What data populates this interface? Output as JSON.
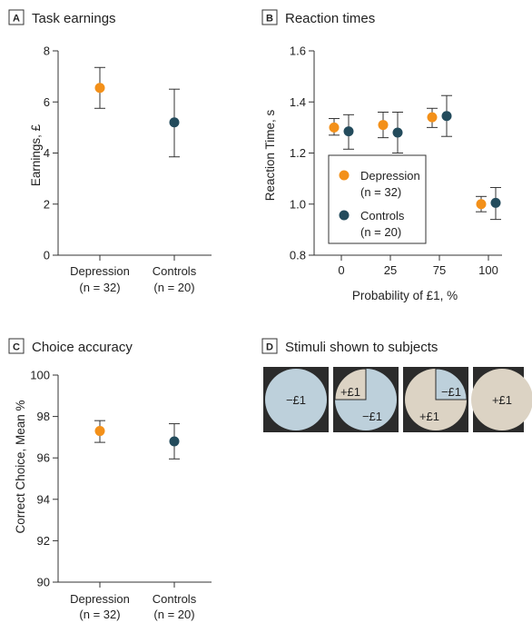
{
  "colors": {
    "depression": "#F39019",
    "controls": "#234B5C",
    "axis": "#333333",
    "stim_blue": "#BDD0DB",
    "stim_beige": "#DCD3C4",
    "stim_bg": "#2B2B2B"
  },
  "chart_data": [
    {
      "id": "A",
      "type": "scatter",
      "title": "Task earnings",
      "ylabel": "Earnings, £",
      "ylim": [
        0,
        8
      ],
      "yticks": [
        "0",
        "2",
        "4",
        "6",
        "8"
      ],
      "categories": [
        {
          "name": "Depression",
          "n": "(n = 32)"
        },
        {
          "name": "Controls",
          "n": "(n = 20)"
        }
      ],
      "points": [
        {
          "group": "depression",
          "mean": 6.55,
          "low": 5.75,
          "high": 7.35
        },
        {
          "group": "controls",
          "mean": 5.2,
          "low": 3.85,
          "high": 6.5
        }
      ]
    },
    {
      "id": "B",
      "type": "scatter",
      "title": "Reaction times",
      "ylabel": "Reaction Time, s",
      "xlabel": "Probability of £1, %",
      "ylim": [
        0.8,
        1.6
      ],
      "yticks": [
        "0.8",
        "1.0",
        "1.2",
        "1.4",
        "1.6"
      ],
      "categories": [
        "0",
        "25",
        "75",
        "100"
      ],
      "series": [
        {
          "name": "Depression",
          "n": "(n = 32)",
          "key": "depression",
          "means": [
            1.3,
            1.31,
            1.34,
            1.0
          ],
          "lows": [
            1.27,
            1.26,
            1.3,
            0.97
          ],
          "highs": [
            1.335,
            1.36,
            1.375,
            1.03
          ]
        },
        {
          "name": "Controls",
          "n": "(n = 20)",
          "key": "controls",
          "means": [
            1.285,
            1.28,
            1.345,
            1.005
          ],
          "lows": [
            1.215,
            1.2,
            1.265,
            0.94
          ],
          "highs": [
            1.35,
            1.36,
            1.425,
            1.065
          ]
        }
      ],
      "legend_position": "lower-left"
    },
    {
      "id": "C",
      "type": "scatter",
      "title": "Choice accuracy",
      "ylabel": "Correct Choice, Mean %",
      "ylim": [
        90,
        100
      ],
      "yticks": [
        "90",
        "92",
        "94",
        "96",
        "98",
        "100"
      ],
      "categories": [
        {
          "name": "Depression",
          "n": "(n = 32)"
        },
        {
          "name": "Controls",
          "n": "(n = 20)"
        }
      ],
      "points": [
        {
          "group": "depression",
          "mean": 97.3,
          "low": 96.75,
          "high": 97.8
        },
        {
          "group": "controls",
          "mean": 96.8,
          "low": 95.95,
          "high": 97.65
        }
      ]
    }
  ],
  "panel_d": {
    "letter": "D",
    "title": "Stimuli shown to subjects",
    "stimuli": [
      {
        "fraction_win": 0,
        "labels": [
          "−£1"
        ]
      },
      {
        "fraction_win": 0.25,
        "labels": [
          "+£1",
          "−£1"
        ]
      },
      {
        "fraction_win": 0.75,
        "labels": [
          "−£1",
          "+£1"
        ]
      },
      {
        "fraction_win": 1,
        "labels": [
          "+£1"
        ]
      }
    ]
  }
}
